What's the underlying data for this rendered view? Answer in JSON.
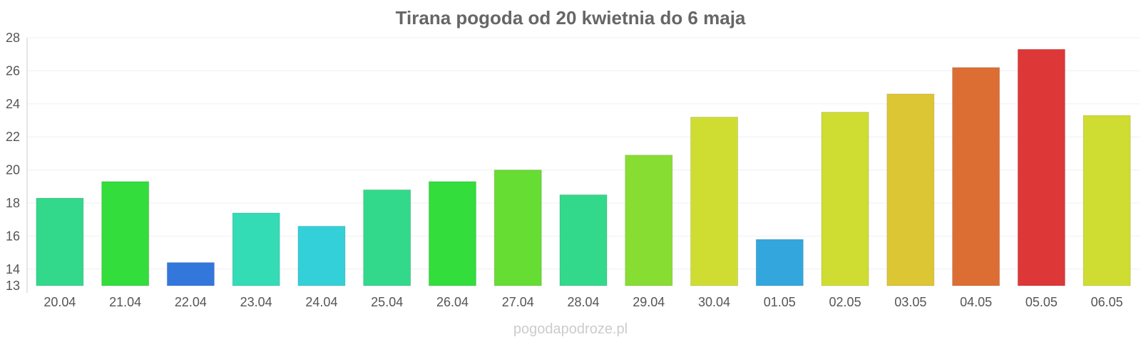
{
  "chart_data": {
    "type": "bar",
    "title": "Tirana pogoda od 20 kwietnia do 6 maja",
    "categories": [
      "20.04",
      "21.04",
      "22.04",
      "23.04",
      "24.04",
      "25.04",
      "26.04",
      "27.04",
      "28.04",
      "29.04",
      "30.04",
      "01.05",
      "02.05",
      "03.05",
      "04.05",
      "05.05",
      "06.05"
    ],
    "values": [
      18.3,
      19.3,
      14.4,
      17.4,
      16.6,
      18.8,
      19.3,
      20.0,
      18.5,
      20.9,
      23.2,
      15.8,
      23.5,
      24.6,
      26.2,
      27.3,
      23.3
    ],
    "colors": [
      "#33d98a",
      "#33dd3b",
      "#3377dd",
      "#33dcb5",
      "#33d0d9",
      "#33d98a",
      "#33dd3b",
      "#66dd33",
      "#33d98a",
      "#88dd33",
      "#cfdd33",
      "#33a7dd",
      "#cfdd33",
      "#ddc633",
      "#dd6e33",
      "#dd3737",
      "#cfdd33"
    ],
    "yticks": [
      13,
      14,
      16,
      18,
      20,
      22,
      24,
      26,
      28
    ],
    "ylim": [
      13,
      28
    ],
    "grid": true,
    "xlabel": "",
    "ylabel": ""
  },
  "watermark": "pogodapodroze.pl"
}
